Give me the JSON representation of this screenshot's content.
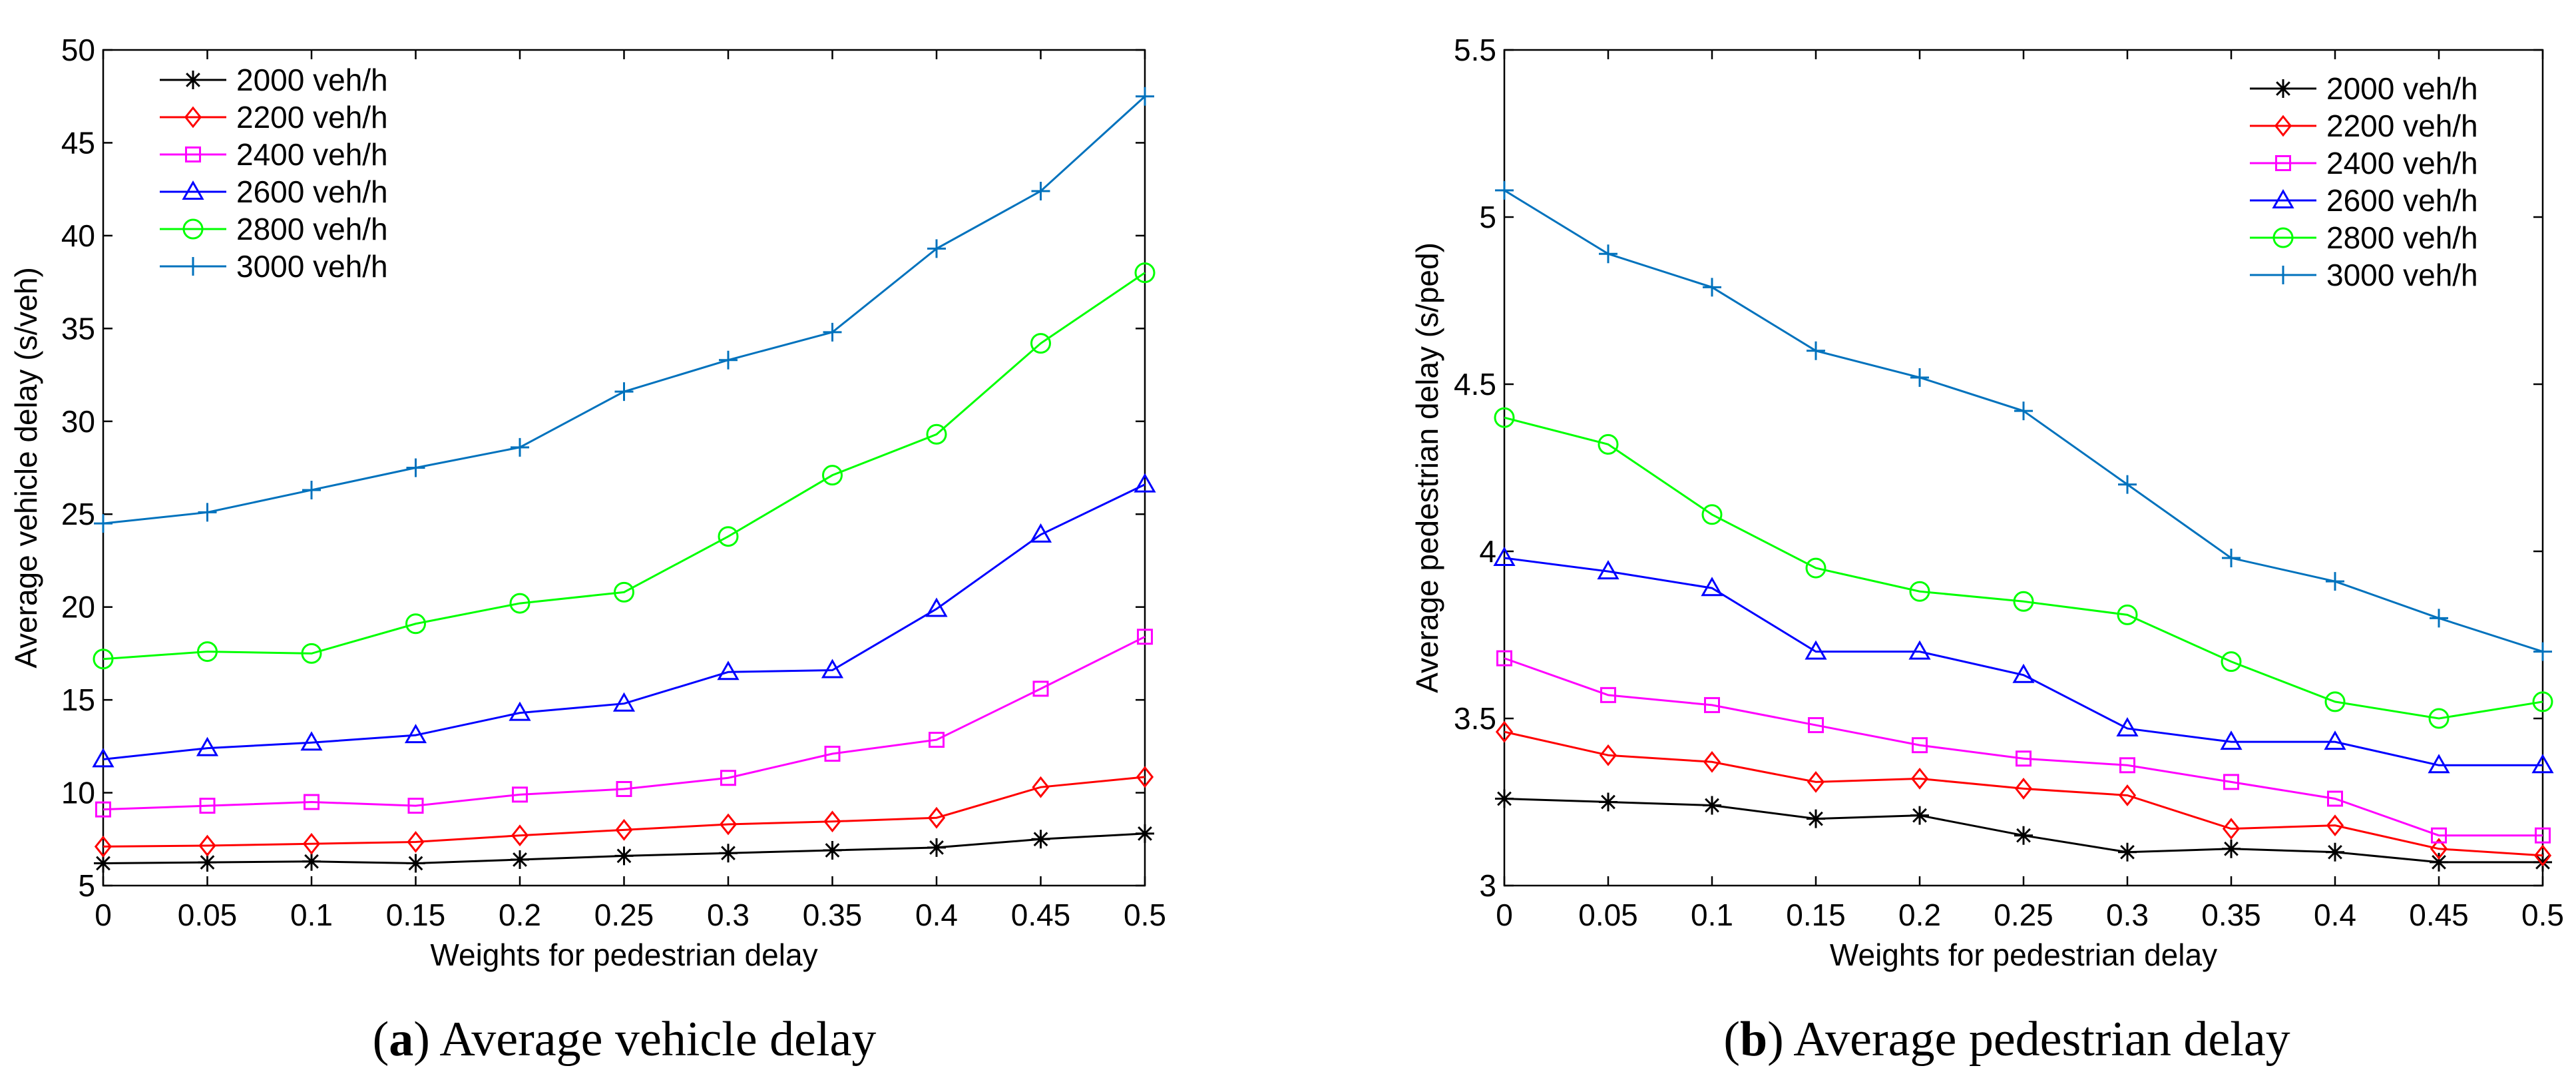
{
  "chart_data": [
    {
      "type": "line",
      "panel_letter": "a",
      "caption": "Average vehicle delay",
      "xlabel": "Weights for pedestrian delay",
      "ylabel": "Average vehicle delay (s/veh)",
      "x": [
        0,
        0.05,
        0.1,
        0.15,
        0.2,
        0.25,
        0.3,
        0.35,
        0.4,
        0.45,
        0.5
      ],
      "x_tick_labels": [
        "0",
        "0.05",
        "0.1",
        "0.15",
        "0.2",
        "0.25",
        "0.3",
        "0.35",
        "0.4",
        "0.45",
        "0.5"
      ],
      "y_ticks": [
        5,
        10,
        15,
        20,
        25,
        30,
        35,
        40,
        45,
        50
      ],
      "y_tick_labels": [
        "5",
        "10",
        "15",
        "20",
        "25",
        "30",
        "35",
        "40",
        "45",
        "50"
      ],
      "xlim": [
        0,
        0.5
      ],
      "ylim": [
        5,
        50
      ],
      "legend_position": "top-left",
      "series": [
        {
          "name": "2000 veh/h",
          "color": "#000000",
          "marker": "asterisk",
          "values": [
            6.2,
            6.25,
            6.3,
            6.2,
            6.4,
            6.6,
            6.75,
            6.9,
            7.05,
            7.5,
            7.8
          ]
        },
        {
          "name": "2200 veh/h",
          "color": "#ff0000",
          "marker": "diamond",
          "values": [
            7.1,
            7.15,
            7.25,
            7.35,
            7.7,
            8.0,
            8.3,
            8.45,
            8.65,
            10.3,
            10.85
          ]
        },
        {
          "name": "2400 veh/h",
          "color": "#ff00ff",
          "marker": "square",
          "values": [
            9.1,
            9.3,
            9.5,
            9.3,
            9.9,
            10.2,
            10.8,
            12.1,
            12.85,
            15.6,
            18.4
          ]
        },
        {
          "name": "2600 veh/h",
          "color": "#0000ff",
          "marker": "triangle",
          "values": [
            11.8,
            12.4,
            12.7,
            13.1,
            14.3,
            14.8,
            16.5,
            16.6,
            19.9,
            23.9,
            26.6
          ]
        },
        {
          "name": "2800 veh/h",
          "color": "#00ff00",
          "marker": "circle",
          "values": [
            17.2,
            17.6,
            17.5,
            19.1,
            20.2,
            20.8,
            23.8,
            27.1,
            29.3,
            34.2,
            38.0
          ]
        },
        {
          "name": "3000 veh/h",
          "color": "#0072bd",
          "marker": "plus",
          "values": [
            24.5,
            25.1,
            26.3,
            27.5,
            28.6,
            31.6,
            33.3,
            34.8,
            39.3,
            42.4,
            47.5
          ]
        }
      ]
    },
    {
      "type": "line",
      "panel_letter": "b",
      "caption": "Average pedestrian delay",
      "xlabel": "Weights for pedestrian delay",
      "ylabel": "Average pedestrian delay (s/ped)",
      "x": [
        0,
        0.05,
        0.1,
        0.15,
        0.2,
        0.25,
        0.3,
        0.35,
        0.4,
        0.45,
        0.5
      ],
      "x_tick_labels": [
        "0",
        "0.05",
        "0.1",
        "0.15",
        "0.2",
        "0.25",
        "0.3",
        "0.35",
        "0.4",
        "0.45",
        "0.5"
      ],
      "y_ticks": [
        3,
        3.5,
        4,
        4.5,
        5,
        5.5
      ],
      "y_tick_labels": [
        "3",
        "3.5",
        "4",
        "4.5",
        "5",
        "5.5"
      ],
      "xlim": [
        0,
        0.5
      ],
      "ylim": [
        3,
        5.5
      ],
      "legend_position": "top-right",
      "series": [
        {
          "name": "2000 veh/h",
          "color": "#000000",
          "marker": "asterisk",
          "values": [
            3.26,
            3.25,
            3.24,
            3.2,
            3.21,
            3.15,
            3.1,
            3.11,
            3.1,
            3.07,
            3.07
          ]
        },
        {
          "name": "2200 veh/h",
          "color": "#ff0000",
          "marker": "diamond",
          "values": [
            3.46,
            3.39,
            3.37,
            3.31,
            3.32,
            3.29,
            3.27,
            3.17,
            3.18,
            3.11,
            3.09
          ]
        },
        {
          "name": "2400 veh/h",
          "color": "#ff00ff",
          "marker": "square",
          "values": [
            3.68,
            3.57,
            3.54,
            3.48,
            3.42,
            3.38,
            3.36,
            3.31,
            3.26,
            3.15,
            3.15
          ]
        },
        {
          "name": "2600 veh/h",
          "color": "#0000ff",
          "marker": "triangle",
          "values": [
            3.98,
            3.94,
            3.89,
            3.7,
            3.7,
            3.63,
            3.47,
            3.43,
            3.43,
            3.36,
            3.36
          ]
        },
        {
          "name": "2800 veh/h",
          "color": "#00ff00",
          "marker": "circle",
          "values": [
            4.4,
            4.32,
            4.11,
            3.95,
            3.88,
            3.85,
            3.81,
            3.67,
            3.55,
            3.5,
            3.55
          ]
        },
        {
          "name": "3000 veh/h",
          "color": "#0072bd",
          "marker": "plus",
          "values": [
            5.08,
            4.89,
            4.79,
            4.6,
            4.52,
            4.42,
            4.2,
            3.98,
            3.91,
            3.8,
            3.7
          ]
        }
      ]
    }
  ]
}
